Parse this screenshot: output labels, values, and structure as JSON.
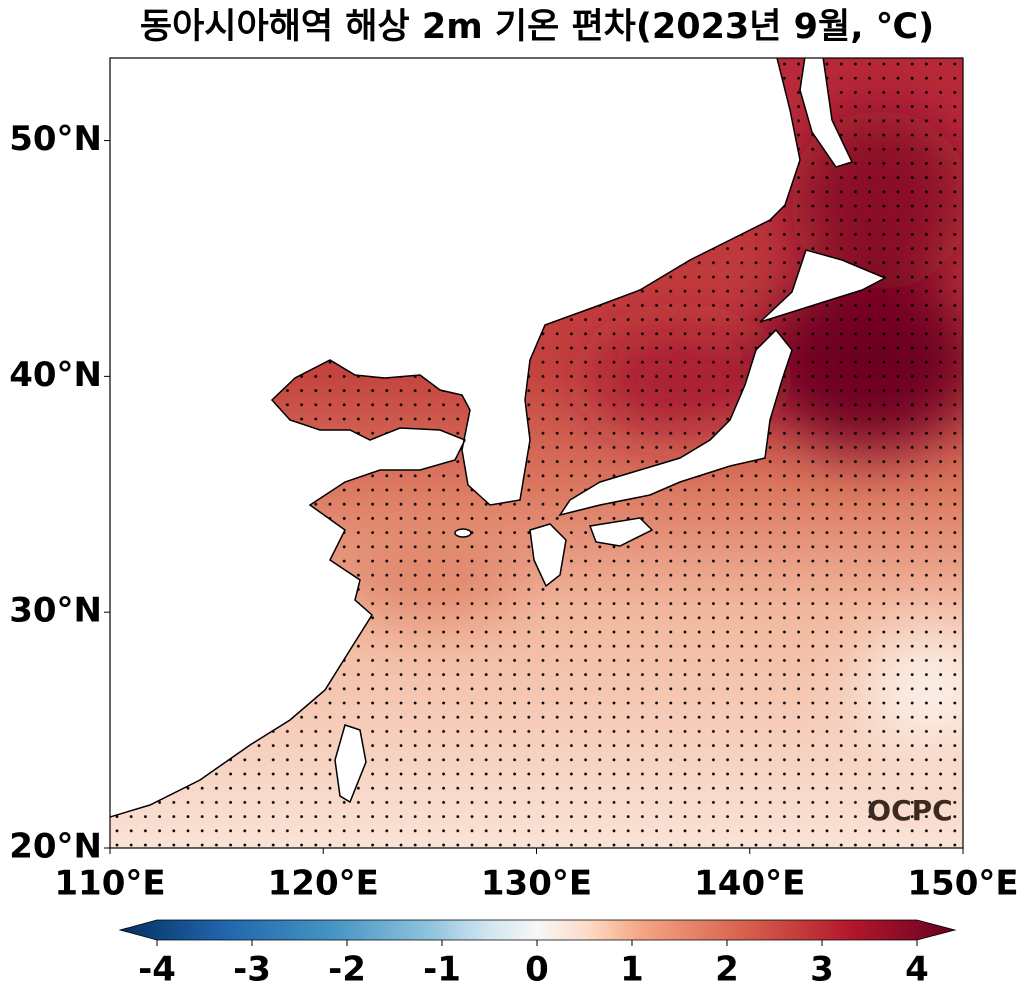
{
  "chart_data": {
    "type": "map",
    "title": "동아시아해역 해상 2m 기온 편차(2023년 9월, ℃)",
    "xlim": [
      110,
      150
    ],
    "ylim": [
      20,
      53.5
    ],
    "xticks": [
      {
        "value": 110,
        "label": "110°E"
      },
      {
        "value": 120,
        "label": "120°E"
      },
      {
        "value": 130,
        "label": "130°E"
      },
      {
        "value": 140,
        "label": "140°E"
      },
      {
        "value": 150,
        "label": "150°E"
      }
    ],
    "yticks": [
      {
        "value": 20,
        "label": "20°N"
      },
      {
        "value": 30,
        "label": "30°N"
      },
      {
        "value": 40,
        "label": "40°N"
      },
      {
        "value": 50,
        "label": "50°N"
      }
    ],
    "colorbar": {
      "range": [
        -4,
        4
      ],
      "ticks": [
        -4,
        -3,
        -2,
        -1,
        0,
        1,
        2,
        3,
        4
      ]
    },
    "logo": "OCPC"
  }
}
